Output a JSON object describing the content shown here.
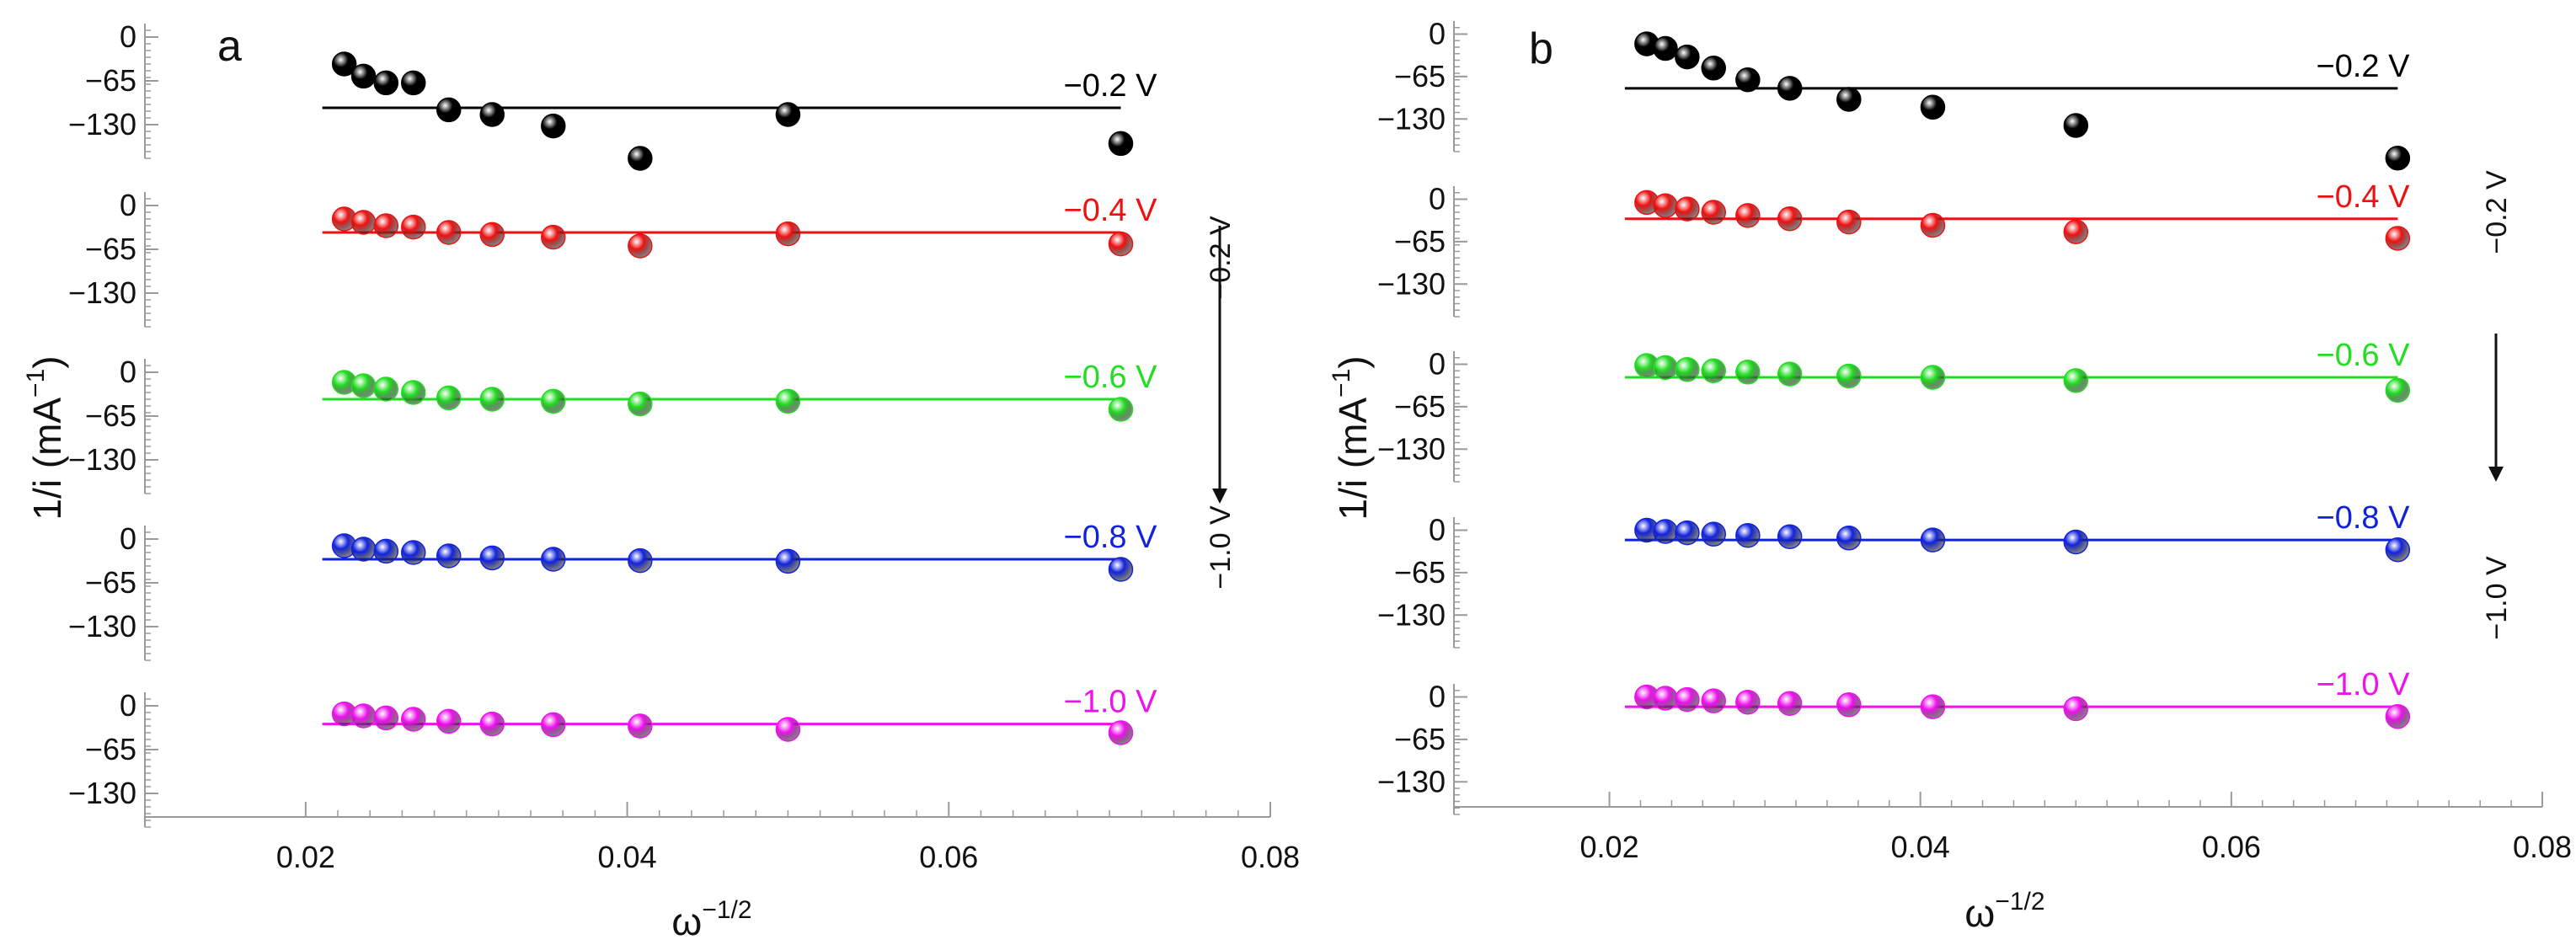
{
  "chart_data": [
    {
      "type": "scatter",
      "panel_label": "a",
      "xlabel": "ω",
      "xlabel_sup": "−1/2",
      "ylabel": "1/i (mA",
      "ylabel_sup": "−1",
      "ylabel_end": ")",
      "xlim": [
        0.01,
        0.08
      ],
      "xticks": [
        "0.02",
        "0.04",
        "0.06",
        "0.08"
      ],
      "ylim": [
        -180,
        20
      ],
      "yticks": [
        "0",
        "−65",
        "−130"
      ],
      "annotation_top": "−0.2 V",
      "annotation_bottom": "−1.0 V",
      "x": [
        0.0224,
        0.0236,
        0.025,
        0.0267,
        0.0289,
        0.0316,
        0.0354,
        0.0408,
        0.05,
        0.0707
      ],
      "series": [
        {
          "name": "−0.2 V",
          "color": "#000000",
          "fit": -105,
          "values": [
            -40,
            -58,
            -68,
            -68,
            -108,
            -115,
            -132,
            -180,
            -115,
            -158
          ]
        },
        {
          "name": "−0.4 V",
          "color": "#ee1111",
          "fit": -40,
          "values": [
            -20,
            -25,
            -30,
            -32,
            -40,
            -43,
            -47,
            -60,
            -42,
            -57
          ]
        },
        {
          "name": "−0.6 V",
          "color": "#22dd22",
          "fit": -40,
          "values": [
            -15,
            -20,
            -25,
            -30,
            -38,
            -40,
            -43,
            -47,
            -43,
            -55
          ]
        },
        {
          "name": "−0.8 V",
          "color": "#1122dd",
          "fit": -30,
          "values": [
            -10,
            -15,
            -18,
            -20,
            -25,
            -28,
            -30,
            -32,
            -33,
            -45
          ]
        },
        {
          "name": "−1.0 V",
          "color": "#ee11ee",
          "fit": -27,
          "values": [
            -12,
            -15,
            -18,
            -20,
            -23,
            -27,
            -28,
            -30,
            -35,
            -40
          ]
        }
      ]
    },
    {
      "type": "scatter",
      "panel_label": "b",
      "xlabel": "ω",
      "xlabel_sup": "−1/2",
      "ylabel": "1/i (mA",
      "ylabel_sup": "−1",
      "ylabel_end": ")",
      "xlim": [
        0.01,
        0.08
      ],
      "xticks": [
        "0.02",
        "0.04",
        "0.06",
        "0.08"
      ],
      "ylim": [
        -180,
        20
      ],
      "yticks": [
        "0",
        "−65",
        "−130"
      ],
      "annotation_top": "−0.2 V",
      "annotation_bottom": "−1.0 V",
      "x": [
        0.0224,
        0.0236,
        0.025,
        0.0267,
        0.0289,
        0.0316,
        0.0354,
        0.0408,
        0.05,
        0.0707
      ],
      "series": [
        {
          "name": "−0.2 V",
          "color": "#000000",
          "fit": -83,
          "values": [
            -15,
            -22,
            -35,
            -52,
            -70,
            -83,
            -100,
            -112,
            -140,
            -190
          ]
        },
        {
          "name": "−0.4 V",
          "color": "#ee1111",
          "fit": -30,
          "values": [
            -5,
            -10,
            -15,
            -20,
            -25,
            -30,
            -35,
            -40,
            -50,
            -60
          ]
        },
        {
          "name": "−0.6 V",
          "color": "#22dd22",
          "fit": -20,
          "values": [
            -2,
            -5,
            -8,
            -10,
            -12,
            -15,
            -18,
            -20,
            -25,
            -40
          ]
        },
        {
          "name": "−0.8 V",
          "color": "#1122dd",
          "fit": -15,
          "values": [
            0,
            -2,
            -4,
            -6,
            -8,
            -10,
            -12,
            -15,
            -18,
            -30
          ]
        },
        {
          "name": "−1.0 V",
          "color": "#ee11ee",
          "fit": -15,
          "values": [
            0,
            -2,
            -4,
            -6,
            -8,
            -10,
            -12,
            -15,
            -18,
            -30
          ]
        }
      ]
    }
  ]
}
